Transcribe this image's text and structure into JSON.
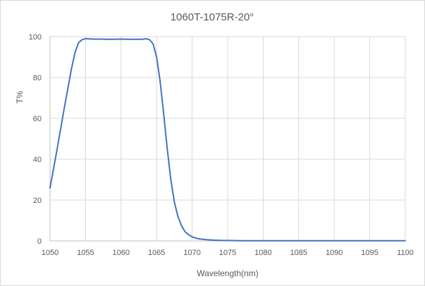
{
  "chart_data": {
    "type": "line",
    "title": "1060T-1075R-20°",
    "xlabel": "Wavelength(nm)",
    "ylabel": "T%",
    "xlim": [
      1050,
      1100
    ],
    "ylim": [
      0,
      100
    ],
    "x_ticks": [
      "1050",
      "1055",
      "1060",
      "1065",
      "1070",
      "1075",
      "1080",
      "1085",
      "1090",
      "1095",
      "1100"
    ],
    "y_ticks": [
      "0",
      "20",
      "40",
      "60",
      "80",
      "100"
    ],
    "grid": true,
    "legend": "none",
    "series": [
      {
        "color": "#4472c4",
        "x": [
          1050,
          1051,
          1052,
          1053,
          1053.5,
          1054,
          1054.5,
          1055,
          1056,
          1057,
          1058,
          1059,
          1060,
          1061,
          1062,
          1063,
          1063.5,
          1064,
          1064.5,
          1065,
          1065.5,
          1066,
          1066.5,
          1067,
          1067.5,
          1068,
          1068.5,
          1069,
          1069.5,
          1070,
          1070.5,
          1071,
          1072,
          1073,
          1074,
          1075,
          1077,
          1080,
          1085,
          1090,
          1095,
          1100
        ],
        "y": [
          26,
          45,
          65,
          84,
          92,
          97,
          98.5,
          99,
          98.8,
          98.8,
          98.7,
          98.7,
          98.8,
          98.7,
          98.7,
          98.7,
          99,
          98.5,
          96.5,
          90,
          78,
          62,
          45,
          30,
          19,
          12,
          7.5,
          4.5,
          3,
          2,
          1.4,
          1,
          0.6,
          0.4,
          0.25,
          0.2,
          0.1,
          0.1,
          0.1,
          0.1,
          0.1,
          0.1
        ]
      }
    ]
  }
}
